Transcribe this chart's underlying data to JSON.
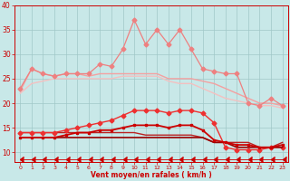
{
  "xlabel": "Vent moyen/en rafales ( km/h )",
  "xlim": [
    -0.5,
    23.5
  ],
  "ylim": [
    8,
    40
  ],
  "yticks": [
    10,
    15,
    20,
    25,
    30,
    35,
    40
  ],
  "xticks": [
    0,
    1,
    2,
    3,
    4,
    5,
    6,
    7,
    8,
    9,
    10,
    11,
    12,
    13,
    14,
    15,
    16,
    17,
    18,
    19,
    20,
    21,
    22,
    23
  ],
  "bg_color": "#c8e8e8",
  "grid_color": "#a0c8c8",
  "lines": [
    {
      "y": [
        22.5,
        27,
        26,
        25.5,
        26,
        26,
        25.5,
        26,
        26,
        26,
        26,
        26,
        26,
        25,
        25,
        25,
        24.5,
        24,
        23,
        22,
        21,
        20,
        20,
        19.5
      ],
      "color": "#f4a0a0",
      "lw": 1.0,
      "marker": null,
      "zorder": 2
    },
    {
      "y": [
        22,
        24,
        24.5,
        25,
        25,
        25,
        25,
        25,
        25,
        25.5,
        25.5,
        25.5,
        25.5,
        24.5,
        24,
        24,
        23,
        22,
        21,
        20.5,
        20,
        19.5,
        19.5,
        19
      ],
      "color": "#f4c0c0",
      "lw": 1.0,
      "marker": null,
      "zorder": 2
    },
    {
      "y": [
        23,
        27,
        26,
        25.5,
        26,
        26,
        26,
        28,
        27.5,
        31,
        37,
        32,
        35,
        32,
        35,
        31,
        27,
        26.5,
        26,
        26,
        20,
        19.5,
        21,
        19.5
      ],
      "color": "#ee8080",
      "lw": 0.9,
      "marker": "D",
      "ms": 2.5,
      "zorder": 3
    },
    {
      "y": [
        14,
        14,
        14,
        14,
        14.5,
        15,
        15.5,
        16,
        16.5,
        17.5,
        18.5,
        18.5,
        18.5,
        18,
        18.5,
        18.5,
        18,
        16,
        11,
        10.5,
        10.5,
        10.5,
        11,
        11
      ],
      "color": "#ee3030",
      "lw": 1.0,
      "marker": "D",
      "ms": 2.5,
      "zorder": 4
    },
    {
      "y": [
        13,
        13,
        13,
        13,
        13.5,
        14,
        14,
        14.5,
        14.5,
        15,
        15.5,
        15.5,
        15.5,
        15,
        15.5,
        15.5,
        14.5,
        12.5,
        12,
        11.5,
        11.5,
        11,
        11,
        11.5
      ],
      "color": "#cc0000",
      "lw": 1.3,
      "marker": "s",
      "ms": 2,
      "zorder": 5
    },
    {
      "y": [
        13,
        13,
        13,
        13,
        13,
        13,
        13,
        13,
        13,
        13,
        13,
        13,
        13,
        13,
        13,
        13,
        13,
        12,
        12,
        11,
        11,
        11,
        11,
        11
      ],
      "color": "#990000",
      "lw": 1.2,
      "marker": null,
      "zorder": 4
    },
    {
      "y": [
        14,
        14,
        14,
        14,
        14,
        14,
        14,
        14,
        14,
        14,
        14,
        13.5,
        13.5,
        13.5,
        13.5,
        13.5,
        13,
        12,
        12,
        12,
        12,
        11,
        11,
        12
      ],
      "color": "#bb2222",
      "lw": 1.0,
      "marker": null,
      "zorder": 3
    },
    {
      "y": [
        8.5,
        8.5,
        8.5,
        8.5,
        8.5,
        8.5,
        8.5,
        8.5,
        8.5,
        8.5,
        8.5,
        8.5,
        8.5,
        8.5,
        8.5,
        8.5,
        8.5,
        8.5,
        8.5,
        8.5,
        8.5,
        8.5,
        8.5,
        8.5
      ],
      "color": "#cc0000",
      "lw": 0.6,
      "marker": 4,
      "ms": 4,
      "zorder": 6
    }
  ]
}
